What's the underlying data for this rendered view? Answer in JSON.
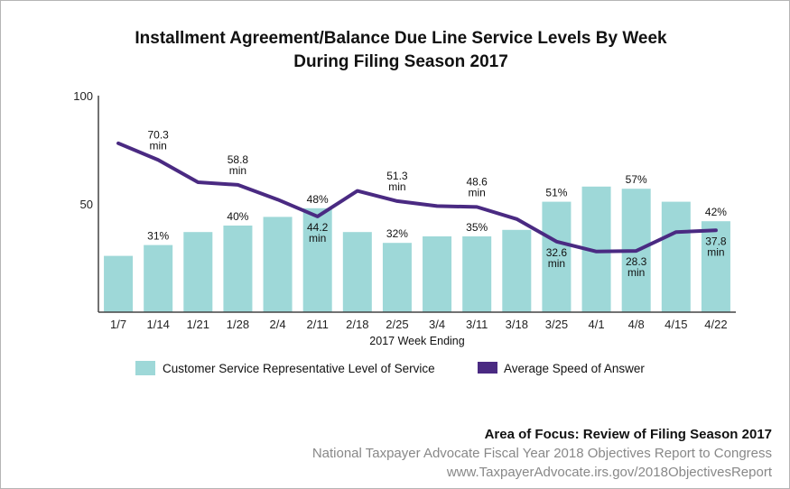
{
  "chart_data": {
    "type": "bar",
    "title_lines": [
      "Installment Agreement/Balance Due Line Service Levels By Week",
      "During Filing Season 2017"
    ],
    "xlabel": "2017 Week Ending",
    "categories": [
      "1/7",
      "1/14",
      "1/21",
      "1/28",
      "2/4",
      "2/11",
      "2/18",
      "2/25",
      "3/4",
      "3/11",
      "3/18",
      "3/25",
      "4/1",
      "4/8",
      "4/15",
      "4/22"
    ],
    "yticks": [
      100,
      50
    ],
    "ylim": [
      0,
      100
    ],
    "colors": {
      "bar": "#9ed8d8",
      "line": "#4a2a82",
      "axis": "#444444"
    },
    "series": [
      {
        "name": "Customer Service Representative Level of Service",
        "type": "bar",
        "values": [
          26,
          31,
          37,
          40,
          44,
          48,
          37,
          32,
          35,
          35,
          38,
          51,
          58,
          57,
          51,
          42
        ]
      },
      {
        "name": "Average Speed of Answer",
        "type": "line",
        "values": [
          78,
          70.3,
          60,
          58.8,
          52,
          44.2,
          56,
          51.3,
          49,
          48.6,
          43,
          32.6,
          28,
          28.3,
          37,
          37.8
        ]
      }
    ],
    "bar_labels": [
      {
        "index": 1,
        "text": "31%"
      },
      {
        "index": 3,
        "text": "40%"
      },
      {
        "index": 5,
        "text": "48%"
      },
      {
        "index": 7,
        "text": "32%"
      },
      {
        "index": 9,
        "text": "35%"
      },
      {
        "index": 11,
        "text": "51%"
      },
      {
        "index": 13,
        "text": "57%"
      },
      {
        "index": 15,
        "text": "42%"
      }
    ],
    "line_labels": [
      {
        "index": 1,
        "value": "70.3",
        "unit": "min",
        "pos": "above"
      },
      {
        "index": 3,
        "value": "58.8",
        "unit": "min",
        "pos": "above"
      },
      {
        "index": 5,
        "value": "44.2",
        "unit": "min",
        "pos": "below"
      },
      {
        "index": 7,
        "value": "51.3",
        "unit": "min",
        "pos": "above"
      },
      {
        "index": 9,
        "value": "48.6",
        "unit": "min",
        "pos": "above"
      },
      {
        "index": 11,
        "value": "32.6",
        "unit": "min",
        "pos": "below"
      },
      {
        "index": 13,
        "value": "28.3",
        "unit": "min",
        "pos": "below"
      },
      {
        "index": 15,
        "value": "37.8",
        "unit": "min",
        "pos": "below"
      }
    ]
  },
  "footer": {
    "focus": "Area of Focus: Review of Filing Season 2017",
    "report": "National Taxpayer Advocate Fiscal Year 2018 Objectives Report to Congress",
    "url": "www.TaxpayerAdvocate.irs.gov/2018ObjectivesReport"
  }
}
